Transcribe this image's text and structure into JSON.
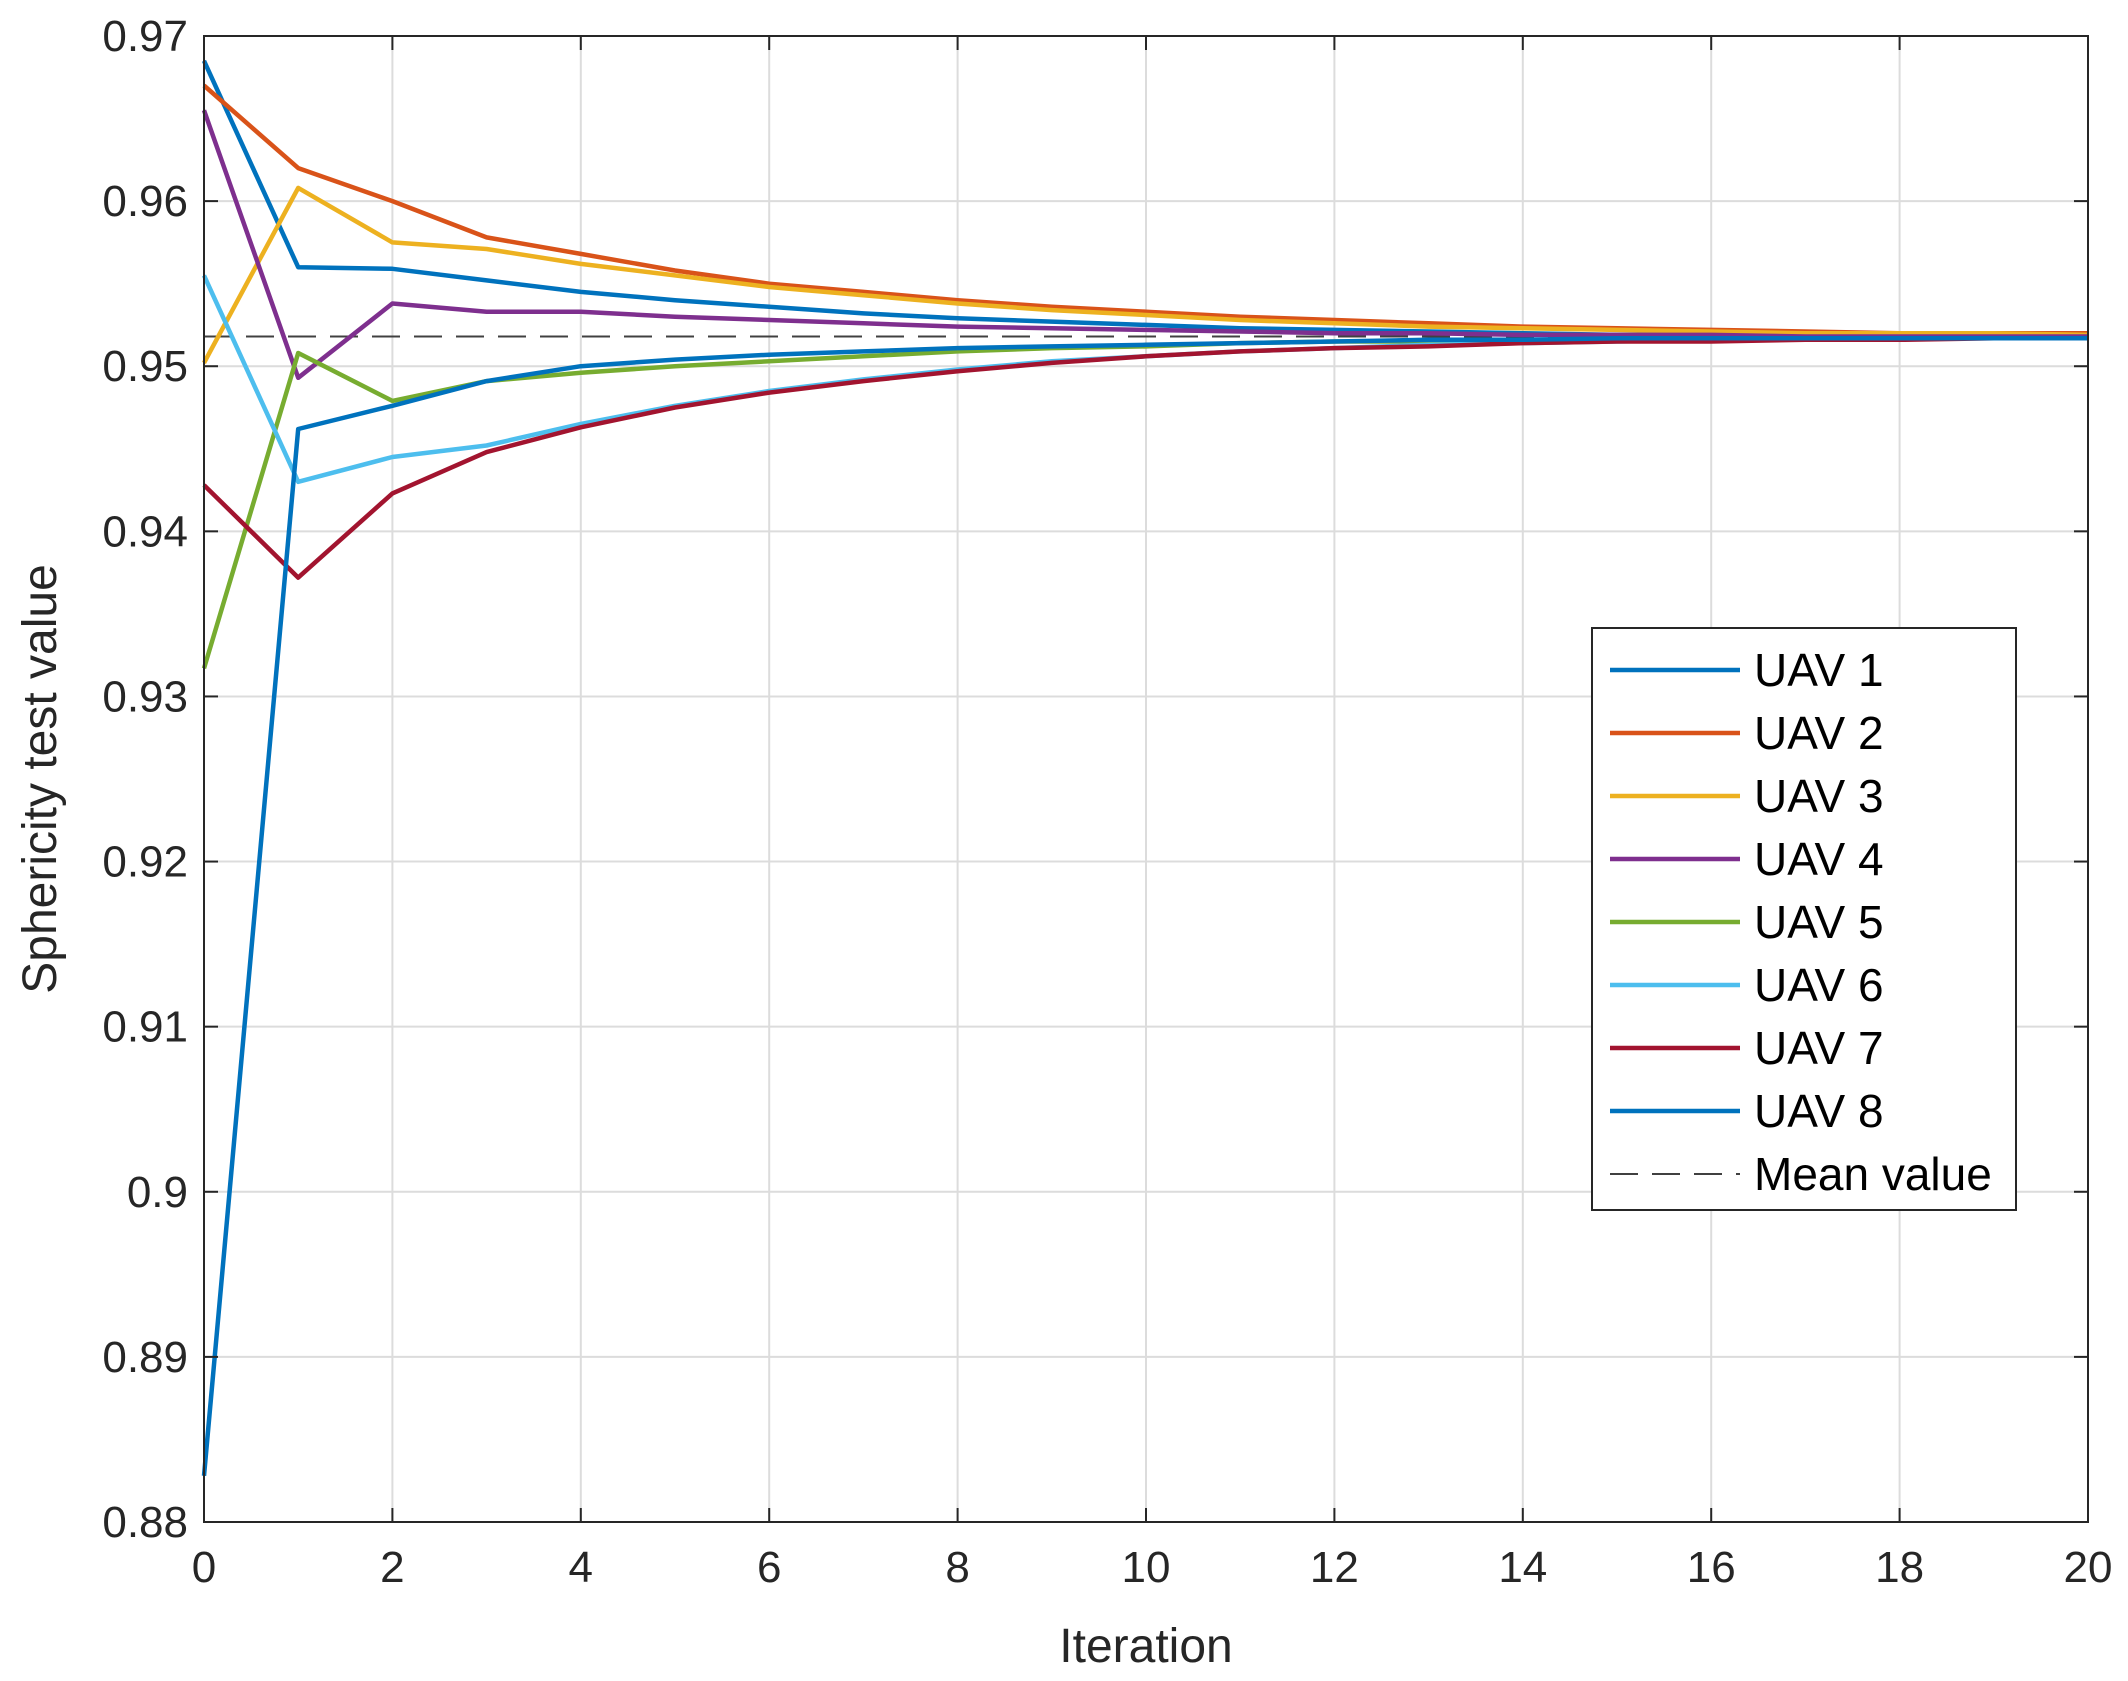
{
  "chart_data": {
    "type": "line",
    "title": "",
    "xlabel": "Iteration",
    "ylabel": "Sphericity test value",
    "xlim": [
      0,
      20
    ],
    "ylim": [
      0.88,
      0.97
    ],
    "xticks": [
      0,
      2,
      4,
      6,
      8,
      10,
      12,
      14,
      16,
      18,
      20
    ],
    "xtick_labels": [
      "0",
      "2",
      "4",
      "6",
      "8",
      "10",
      "12",
      "14",
      "16",
      "18",
      "20"
    ],
    "yticks": [
      0.88,
      0.89,
      0.9,
      0.91,
      0.92,
      0.93,
      0.94,
      0.95,
      0.96,
      0.97
    ],
    "ytick_labels": [
      "0.88",
      "0.89",
      "0.9",
      "0.91",
      "0.92",
      "0.93",
      "0.94",
      "0.95",
      "0.96",
      "0.97"
    ],
    "grid": true,
    "legend_position": "right-middle",
    "x": [
      0,
      1,
      2,
      3,
      4,
      5,
      6,
      7,
      8,
      9,
      10,
      11,
      12,
      13,
      14,
      15,
      16,
      17,
      18,
      19,
      20
    ],
    "series": [
      {
        "name": "UAV 1",
        "color": "#0072BD",
        "style": "solid",
        "values": [
          0.9685,
          0.956,
          0.9559,
          0.9552,
          0.9545,
          0.954,
          0.9536,
          0.9532,
          0.9529,
          0.9527,
          0.9525,
          0.9523,
          0.9522,
          0.9521,
          0.952,
          0.9519,
          0.9519,
          0.9518,
          0.9518,
          0.9518,
          0.9518
        ]
      },
      {
        "name": "UAV 2",
        "color": "#D95319",
        "style": "solid",
        "values": [
          0.967,
          0.962,
          0.96,
          0.9578,
          0.9568,
          0.9558,
          0.955,
          0.9545,
          0.954,
          0.9536,
          0.9533,
          0.953,
          0.9528,
          0.9526,
          0.9524,
          0.9523,
          0.9522,
          0.9521,
          0.952,
          0.952,
          0.952
        ]
      },
      {
        "name": "UAV 3",
        "color": "#EDB120",
        "style": "solid",
        "values": [
          0.9502,
          0.9608,
          0.9575,
          0.9571,
          0.9562,
          0.9555,
          0.9548,
          0.9543,
          0.9538,
          0.9534,
          0.9531,
          0.9528,
          0.9526,
          0.9524,
          0.9523,
          0.9522,
          0.9521,
          0.952,
          0.952,
          0.952,
          0.9519
        ]
      },
      {
        "name": "UAV 4",
        "color": "#7E2F8E",
        "style": "solid",
        "values": [
          0.9655,
          0.9493,
          0.9538,
          0.9533,
          0.9533,
          0.953,
          0.9528,
          0.9526,
          0.9524,
          0.9523,
          0.9522,
          0.9521,
          0.952,
          0.952,
          0.9519,
          0.9519,
          0.9519,
          0.9518,
          0.9518,
          0.9518,
          0.9518
        ]
      },
      {
        "name": "UAV 5",
        "color": "#77AC30",
        "style": "solid",
        "values": [
          0.9317,
          0.9508,
          0.9479,
          0.9491,
          0.9496,
          0.95,
          0.9503,
          0.9506,
          0.9509,
          0.9511,
          0.9512,
          0.9514,
          0.9515,
          0.9515,
          0.9516,
          0.9516,
          0.9517,
          0.9517,
          0.9517,
          0.9517,
          0.9517
        ]
      },
      {
        "name": "UAV 6",
        "color": "#4DBEEE",
        "style": "solid",
        "values": [
          0.9555,
          0.943,
          0.9445,
          0.9452,
          0.9465,
          0.9476,
          0.9485,
          0.9492,
          0.9498,
          0.9503,
          0.9506,
          0.9509,
          0.9511,
          0.9513,
          0.9514,
          0.9515,
          0.9516,
          0.9516,
          0.9517,
          0.9517,
          0.9517
        ]
      },
      {
        "name": "UAV 7",
        "color": "#A2142F",
        "style": "solid",
        "values": [
          0.9428,
          0.9372,
          0.9423,
          0.9448,
          0.9463,
          0.9475,
          0.9484,
          0.9491,
          0.9497,
          0.9502,
          0.9506,
          0.9509,
          0.9511,
          0.9512,
          0.9514,
          0.9515,
          0.9515,
          0.9516,
          0.9516,
          0.9517,
          0.9517
        ]
      },
      {
        "name": "UAV 8",
        "color": "#0072BD",
        "style": "solid",
        "values": [
          0.8828,
          0.9462,
          0.9476,
          0.9491,
          0.95,
          0.9504,
          0.9507,
          0.9509,
          0.9511,
          0.9512,
          0.9513,
          0.9514,
          0.9515,
          0.9516,
          0.9516,
          0.9517,
          0.9517,
          0.9517,
          0.9517,
          0.9517,
          0.9517
        ]
      },
      {
        "name": "Mean value",
        "color": "#404040",
        "style": "dashed",
        "values": [
          0.9518,
          0.9518,
          0.9518,
          0.9518,
          0.9518,
          0.9518,
          0.9518,
          0.9518,
          0.9518,
          0.9518,
          0.9518,
          0.9518,
          0.9518,
          0.9518,
          0.9518,
          0.9518,
          0.9518,
          0.9518,
          0.9518,
          0.9518,
          0.9518
        ]
      }
    ]
  }
}
